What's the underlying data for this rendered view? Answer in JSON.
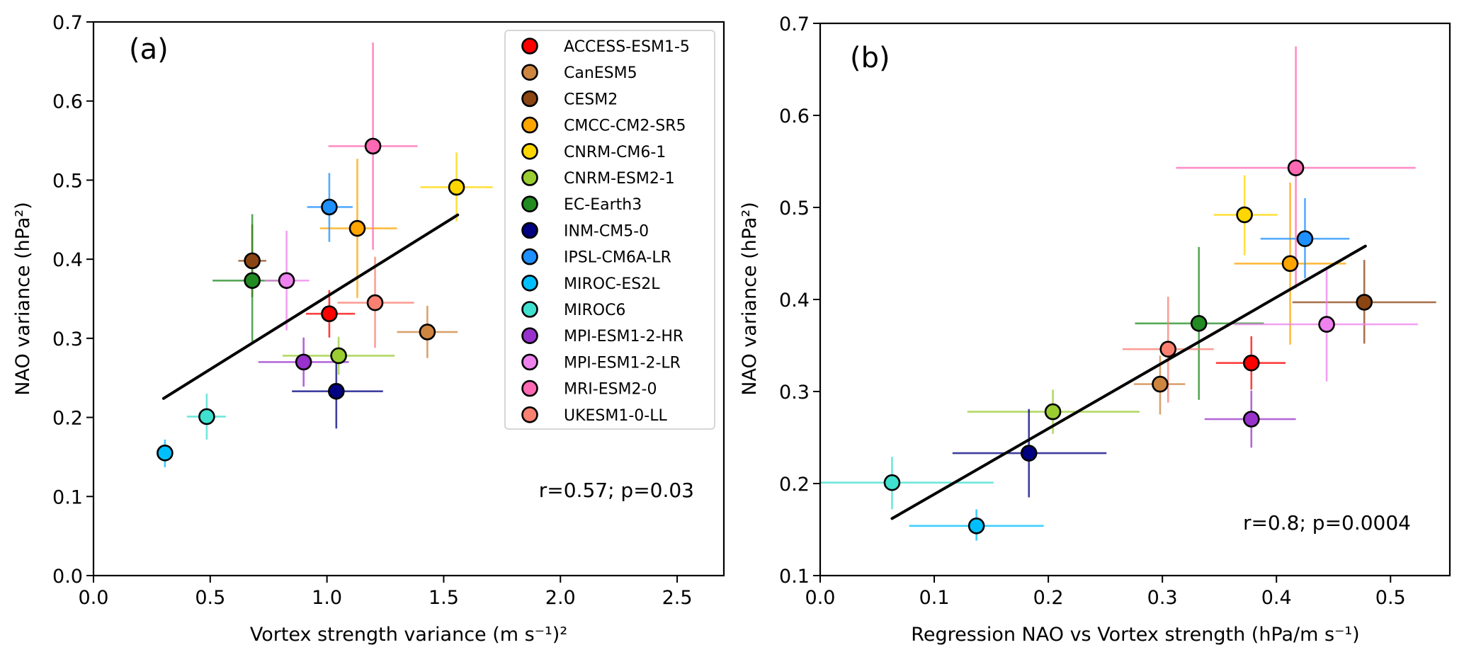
{
  "figure": {
    "models": [
      {
        "name": "ACCESS-ESM1-5",
        "color": "#ff0000"
      },
      {
        "name": "CanESM5",
        "color": "#cd853f"
      },
      {
        "name": "CESM2",
        "color": "#8b4513"
      },
      {
        "name": "CMCC-CM2-SR5",
        "color": "#ffa500"
      },
      {
        "name": "CNRM-CM6-1",
        "color": "#ffd700"
      },
      {
        "name": "CNRM-ESM2-1",
        "color": "#9acd32"
      },
      {
        "name": "EC-Earth3",
        "color": "#228b22"
      },
      {
        "name": "INM-CM5-0",
        "color": "#000080"
      },
      {
        "name": "IPSL-CM6A-LR",
        "color": "#1e90ff"
      },
      {
        "name": "MIROC-ES2L",
        "color": "#00bfff"
      },
      {
        "name": "MIROC6",
        "color": "#40e0d0"
      },
      {
        "name": "MPI-ESM1-2-HR",
        "color": "#9932cc"
      },
      {
        "name": "MPI-ESM1-2-LR",
        "color": "#ee82ee"
      },
      {
        "name": "MRI-ESM2-0",
        "color": "#ff69b4"
      },
      {
        "name": "UKESM1-0-LL",
        "color": "#fa8072"
      }
    ]
  },
  "chart_data": [
    {
      "type": "scatter",
      "panel_label": "(a)",
      "title": "",
      "xlabel": "Vortex strength variance (m s⁻¹)²",
      "ylabel": "NAO variance (hPa²)",
      "xlim": [
        0,
        2.7
      ],
      "ylim": [
        0,
        0.7
      ],
      "xticks": [
        0.0,
        0.5,
        1.0,
        1.5,
        2.0,
        2.5
      ],
      "xtick_labels": [
        "0.0",
        "0.5",
        "1.0",
        "1.5",
        "2.0",
        "2.5"
      ],
      "yticks": [
        0.0,
        0.1,
        0.2,
        0.3,
        0.4,
        0.5,
        0.6,
        0.7
      ],
      "ytick_labels": [
        "0.0",
        "0.1",
        "0.2",
        "0.3",
        "0.4",
        "0.5",
        "0.6",
        "0.7"
      ],
      "grid": false,
      "legend": "top-right",
      "annotation": "r=0.57; p=0.03",
      "regression_line": {
        "x": [
          0.3,
          1.56
        ],
        "y": [
          0.224,
          0.456
        ]
      },
      "points": [
        {
          "model": "ACCESS-ESM1-5",
          "x": 1.01,
          "y": 0.331,
          "xerr": [
            0.91,
            1.12
          ],
          "yerr": [
            0.301,
            0.361
          ]
        },
        {
          "model": "CanESM5",
          "x": 1.43,
          "y": 0.308,
          "xerr": [
            1.3,
            1.56
          ],
          "yerr": [
            0.275,
            0.341
          ]
        },
        {
          "model": "CESM2",
          "x": 0.68,
          "y": 0.398,
          "xerr": [
            0.62,
            0.74
          ],
          "yerr": [
            0.352,
            0.444
          ]
        },
        {
          "model": "CMCC-CM2-SR5",
          "x": 1.13,
          "y": 0.439,
          "xerr": [
            0.97,
            1.3
          ],
          "yerr": [
            0.351,
            0.527
          ]
        },
        {
          "model": "CNRM-CM6-1",
          "x": 1.555,
          "y": 0.491,
          "xerr": [
            1.4,
            1.71
          ],
          "yerr": [
            0.448,
            0.535
          ]
        },
        {
          "model": "CNRM-ESM2-1",
          "x": 1.05,
          "y": 0.278,
          "xerr": [
            0.81,
            1.29
          ],
          "yerr": [
            0.254,
            0.302
          ]
        },
        {
          "model": "EC-Earth3",
          "x": 0.68,
          "y": 0.373,
          "xerr": [
            0.51,
            0.85
          ],
          "yerr": [
            0.296,
            0.457
          ]
        },
        {
          "model": "INM-CM5-0",
          "x": 1.04,
          "y": 0.233,
          "xerr": [
            0.85,
            1.24
          ],
          "yerr": [
            0.186,
            0.281
          ]
        },
        {
          "model": "IPSL-CM6A-LR",
          "x": 1.01,
          "y": 0.466,
          "xerr": [
            0.915,
            1.11
          ],
          "yerr": [
            0.422,
            0.509
          ]
        },
        {
          "model": "MIROC-ES2L",
          "x": 0.306,
          "y": 0.155,
          "xerr": [
            0.306,
            0.306
          ],
          "yerr": [
            0.137,
            0.172
          ]
        },
        {
          "model": "MIROC6",
          "x": 0.485,
          "y": 0.201,
          "xerr": [
            0.4,
            0.567
          ],
          "yerr": [
            0.172,
            0.23
          ]
        },
        {
          "model": "MPI-ESM1-2-HR",
          "x": 0.9,
          "y": 0.27,
          "xerr": [
            0.706,
            1.094
          ],
          "yerr": [
            0.239,
            0.301
          ]
        },
        {
          "model": "MPI-ESM1-2-LR",
          "x": 0.827,
          "y": 0.373,
          "xerr": [
            0.733,
            0.924
          ],
          "yerr": [
            0.31,
            0.436
          ]
        },
        {
          "model": "MRI-ESM2-0",
          "x": 1.197,
          "y": 0.543,
          "xerr": [
            1.006,
            1.388
          ],
          "yerr": [
            0.412,
            0.674
          ]
        },
        {
          "model": "UKESM1-0-LL",
          "x": 1.206,
          "y": 0.345,
          "xerr": [
            1.045,
            1.373
          ],
          "yerr": [
            0.288,
            0.403
          ]
        }
      ]
    },
    {
      "type": "scatter",
      "panel_label": "(b)",
      "title": "",
      "xlabel": "Regression NAO vs Vortex strength (hPa/m s⁻¹)",
      "ylabel": "NAO variance (hPa²)",
      "xlim": [
        0,
        0.552
      ],
      "ylim": [
        0.1,
        0.7
      ],
      "xticks": [
        0.0,
        0.1,
        0.2,
        0.3,
        0.4,
        0.5
      ],
      "xtick_labels": [
        "0.0",
        "0.1",
        "0.2",
        "0.3",
        "0.4",
        "0.5"
      ],
      "yticks": [
        0.1,
        0.2,
        0.3,
        0.4,
        0.5,
        0.6,
        0.7
      ],
      "ytick_labels": [
        "0.1",
        "0.2",
        "0.3",
        "0.4",
        "0.5",
        "0.6",
        "0.7"
      ],
      "grid": false,
      "legend": "none",
      "annotation": "r=0.8; p=0.0004",
      "regression_line": {
        "x": [
          0.063,
          0.478
        ],
        "y": [
          0.162,
          0.458
        ]
      },
      "points": [
        {
          "model": "ACCESS-ESM1-5",
          "x": 0.378,
          "y": 0.331,
          "xerr": [
            0.347,
            0.408
          ],
          "yerr": [
            0.302,
            0.36
          ]
        },
        {
          "model": "CanESM5",
          "x": 0.298,
          "y": 0.308,
          "xerr": [
            0.275,
            0.32
          ],
          "yerr": [
            0.275,
            0.339
          ]
        },
        {
          "model": "CESM2",
          "x": 0.477,
          "y": 0.397,
          "xerr": [
            0.414,
            0.54
          ],
          "yerr": [
            0.352,
            0.443
          ]
        },
        {
          "model": "CMCC-CM2-SR5",
          "x": 0.412,
          "y": 0.439,
          "xerr": [
            0.363,
            0.461
          ],
          "yerr": [
            0.351,
            0.527
          ]
        },
        {
          "model": "CNRM-CM6-1",
          "x": 0.372,
          "y": 0.492,
          "xerr": [
            0.345,
            0.401
          ],
          "yerr": [
            0.448,
            0.535
          ]
        },
        {
          "model": "CNRM-ESM2-1",
          "x": 0.204,
          "y": 0.278,
          "xerr": [
            0.129,
            0.28
          ],
          "yerr": [
            0.254,
            0.302
          ]
        },
        {
          "model": "EC-Earth3",
          "x": 0.332,
          "y": 0.374,
          "xerr": [
            0.276,
            0.389
          ],
          "yerr": [
            0.291,
            0.457
          ]
        },
        {
          "model": "INM-CM5-0",
          "x": 0.183,
          "y": 0.233,
          "xerr": [
            0.116,
            0.251
          ],
          "yerr": [
            0.185,
            0.281
          ]
        },
        {
          "model": "IPSL-CM6A-LR",
          "x": 0.425,
          "y": 0.466,
          "xerr": [
            0.386,
            0.464
          ],
          "yerr": [
            0.423,
            0.51
          ]
        },
        {
          "model": "MIROC-ES2L",
          "x": 0.137,
          "y": 0.154,
          "xerr": [
            0.078,
            0.196
          ],
          "yerr": [
            0.138,
            0.172
          ]
        },
        {
          "model": "MIROC6",
          "x": 0.063,
          "y": 0.201,
          "xerr": [
            -0.03,
            0.152
          ],
          "yerr": [
            0.172,
            0.229
          ]
        },
        {
          "model": "MPI-ESM1-2-HR",
          "x": 0.378,
          "y": 0.27,
          "xerr": [
            0.337,
            0.417
          ],
          "yerr": [
            0.239,
            0.301
          ]
        },
        {
          "model": "MPI-ESM1-2-LR",
          "x": 0.444,
          "y": 0.373,
          "xerr": [
            0.363,
            0.524
          ],
          "yerr": [
            0.311,
            0.435
          ]
        },
        {
          "model": "MRI-ESM2-0",
          "x": 0.417,
          "y": 0.543,
          "xerr": [
            0.312,
            0.522
          ],
          "yerr": [
            0.412,
            0.675
          ]
        },
        {
          "model": "UKESM1-0-LL",
          "x": 0.305,
          "y": 0.346,
          "xerr": [
            0.265,
            0.345
          ],
          "yerr": [
            0.288,
            0.403
          ]
        }
      ]
    }
  ]
}
